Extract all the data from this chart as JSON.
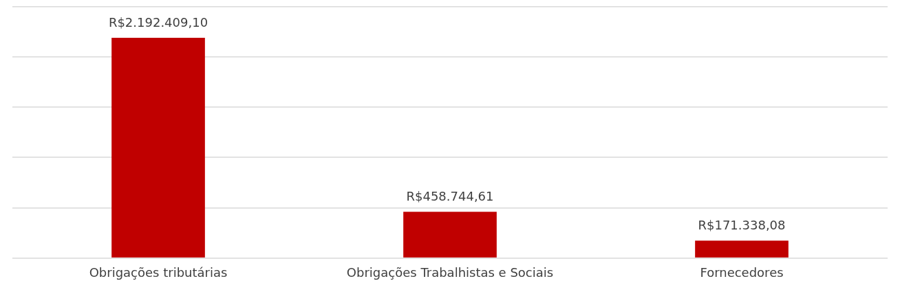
{
  "chart_data": {
    "type": "bar",
    "categories": [
      "Obrigações tributárias",
      "Obrigações Trabalhistas e Sociais",
      "Fornecedores"
    ],
    "values": [
      2192409.1,
      458744.61,
      171338.08
    ],
    "value_labels": [
      "R$2.192.409,10",
      "R$458.744,61",
      "R$171.338,08"
    ],
    "color": "#c00000",
    "ylim": [
      0,
      2500000
    ],
    "yticks": [
      {
        "value": 0,
        "label": null
      },
      {
        "value": 500000,
        "label": null
      },
      {
        "value": 1000000,
        "label": null
      },
      {
        "value": 1500000,
        "label": null
      },
      {
        "value": 2000000,
        "label": null
      },
      {
        "value": 2500000,
        "label": null
      }
    ],
    "grid": "y",
    "tick_labels": "x",
    "legend": false
  }
}
